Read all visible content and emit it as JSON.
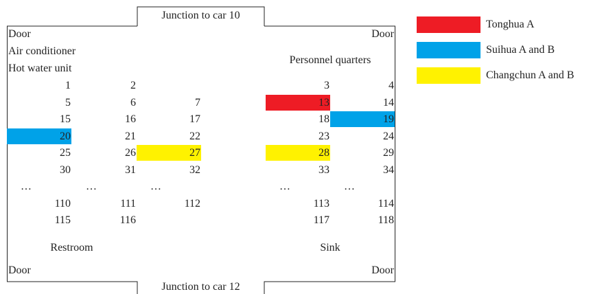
{
  "junction_top": "Junction to car 10",
  "junction_bottom": "Junction to car 12",
  "door_top_left": "Door",
  "door_top_right": "Door",
  "door_bottom_left": "Door",
  "door_bottom_right": "Door",
  "left_labels": [
    "Air conditioner",
    "Hot water unit"
  ],
  "right_label": "Personnel quarters",
  "restroom": "Restroom",
  "sink": "Sink",
  "legend": [
    {
      "label": "Tonghua A",
      "color": "#ee1c25"
    },
    {
      "label": "Suihua A and B",
      "color": "#00a2e8"
    },
    {
      "label": "Changchun A and B",
      "color": "#fff200"
    }
  ],
  "seats": [
    [
      "1",
      "2",
      null,
      "3",
      "4"
    ],
    [
      "5",
      "6",
      "7",
      {
        "label": "13",
        "group": 0
      },
      "14"
    ],
    [
      "15",
      "16",
      "17",
      "18",
      {
        "label": "19",
        "group": 1
      }
    ],
    [
      {
        "label": "20",
        "group": 1
      },
      "21",
      "22",
      "23",
      "24"
    ],
    [
      "25",
      "26",
      {
        "label": "27",
        "group": 2
      },
      {
        "label": "28",
        "group": 2
      },
      "29"
    ],
    [
      "30",
      "31",
      "32",
      "33",
      "34"
    ],
    [
      "…",
      "…",
      "…",
      "…",
      "…"
    ],
    [
      "110",
      "111",
      "112",
      "113",
      "114"
    ],
    [
      "115",
      "116",
      null,
      "117",
      "118"
    ]
  ]
}
